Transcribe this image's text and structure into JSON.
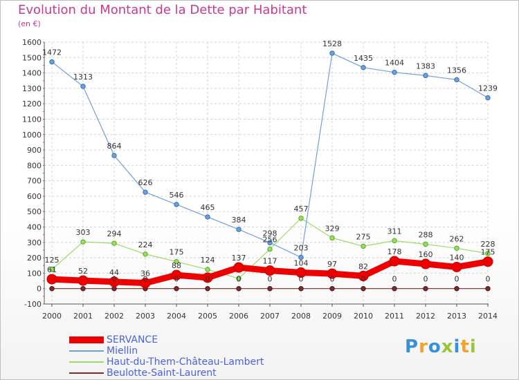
{
  "title": "Evolution du Montant de la Dette par Habitant",
  "subtitle": "(en €)",
  "logo": {
    "letters": [
      "P",
      "r",
      "o",
      "x",
      "i",
      "t",
      "i"
    ],
    "colors": [
      "#3a8fd9",
      "#f2a22a",
      "#3a8fd9",
      "#9ac43a",
      "#3a8fd9",
      "#f2a22a",
      "#9ac43a"
    ]
  },
  "chart_data": {
    "type": "line",
    "title": "Evolution du Montant de la Dette par Habitant",
    "subtitle": "(en €)",
    "x": [
      "2000",
      "2001",
      "2002",
      "2003",
      "2004",
      "2005",
      "2006",
      "2007",
      "2008",
      "2009",
      "2010",
      "2011",
      "2012",
      "2013",
      "2014"
    ],
    "yticks": [
      "-100",
      "0",
      "100",
      "200",
      "300",
      "400",
      "500",
      "600",
      "700",
      "800",
      "900",
      "1000",
      "1100",
      "1200",
      "1300",
      "1400",
      "1500",
      "1600"
    ],
    "ylim": [
      -100,
      1600
    ],
    "grid": true,
    "legend_position": "bottom-left",
    "series": [
      {
        "name": "SERVANCE",
        "color": "#ee0000",
        "values": [
          61,
          52,
          44,
          36,
          88,
          71,
          137,
          117,
          104,
          97,
          82,
          178,
          160,
          140,
          175
        ],
        "labels": [
          "61",
          "52",
          "44",
          "36",
          "88",
          "",
          "137",
          "117",
          "104",
          "97",
          "82",
          "178",
          "160",
          "140",
          "175"
        ]
      },
      {
        "name": "Miellin",
        "color": "#6fa0d8",
        "values": [
          1472,
          1313,
          864,
          626,
          546,
          465,
          384,
          298,
          203,
          1528,
          1435,
          1404,
          1383,
          1356,
          1239
        ],
        "labels": [
          "1472",
          "1313",
          "864",
          "626",
          "546",
          "465",
          "384",
          "298",
          "203",
          "1528",
          "1435",
          "1404",
          "1383",
          "1356",
          "1239"
        ]
      },
      {
        "name": "Haut-du-Them-Château-Lambert",
        "color": "#99dd66",
        "values": [
          125,
          303,
          294,
          224,
          175,
          124,
          66,
          256,
          457,
          329,
          275,
          311,
          288,
          262,
          228
        ],
        "labels": [
          "125",
          "303",
          "294",
          "224",
          "175",
          "124",
          "",
          "256",
          "457",
          "329",
          "275",
          "311",
          "288",
          "262",
          "228"
        ]
      },
      {
        "name": "Beulotte-Saint-Laurent",
        "color": "#7a2b2b",
        "values": [
          0,
          0,
          0,
          0,
          0,
          0,
          0,
          0,
          0,
          0,
          0,
          0,
          0,
          0,
          0
        ],
        "labels": [
          "",
          "",
          "0",
          "0",
          "0",
          "0",
          "0",
          "0",
          "0",
          "0",
          "0",
          "0",
          "0",
          "0",
          "0"
        ]
      }
    ]
  }
}
